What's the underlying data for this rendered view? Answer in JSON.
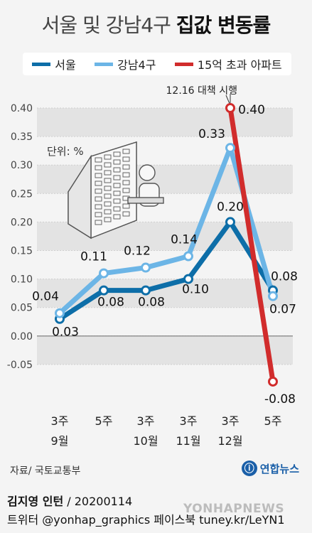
{
  "title": {
    "part1": "서울 및 강남4구 ",
    "part2": "집값 변동률"
  },
  "legend": [
    {
      "label": "서울",
      "color": "#0d6ea8"
    },
    {
      "label": "강남4구",
      "color": "#6cb5e6"
    },
    {
      "label": "15억 초과 아파트",
      "color": "#d12c2c"
    }
  ],
  "chart_data": {
    "type": "line",
    "unit_label": "단위: %",
    "annotation": "12.16 대책 시행",
    "ylim": [
      -0.1,
      0.42
    ],
    "yticks": [
      "0.40",
      "0.35",
      "0.30",
      "0.25",
      "0.20",
      "0.15",
      "0.10",
      "0.05",
      "0.00",
      "-0.05"
    ],
    "ytick_values": [
      0.4,
      0.35,
      0.3,
      0.25,
      0.2,
      0.15,
      0.1,
      0.05,
      0.0,
      -0.05
    ],
    "x_week_labels": [
      "3주",
      "5주",
      "3주",
      "3주",
      "3주",
      "5주"
    ],
    "x_month_labels": [
      "9월",
      "",
      "10월",
      "11월",
      "12월",
      ""
    ],
    "series": [
      {
        "name": "서울",
        "color": "#0d6ea8",
        "points": [
          [
            0,
            0.03
          ],
          [
            1,
            0.08
          ],
          [
            2,
            0.08
          ],
          [
            3,
            0.1
          ],
          [
            4,
            0.2
          ],
          [
            5,
            0.08
          ]
        ],
        "labels": [
          "0.03",
          "0.08",
          "0.08",
          "0.10",
          "0.20",
          "0.08"
        ]
      },
      {
        "name": "강남4구",
        "color": "#6cb5e6",
        "points": [
          [
            0,
            0.04
          ],
          [
            1,
            0.11
          ],
          [
            2,
            0.12
          ],
          [
            3,
            0.14
          ],
          [
            4,
            0.33
          ],
          [
            5,
            0.07
          ]
        ],
        "labels": [
          "0.04",
          "0.11",
          "0.12",
          "0.14",
          "0.33",
          "0.07"
        ]
      },
      {
        "name": "15억 초과 아파트",
        "color": "#d12c2c",
        "points": [
          [
            4,
            0.4
          ],
          [
            5,
            -0.08
          ]
        ],
        "labels": [
          "0.40",
          "-0.08"
        ]
      }
    ]
  },
  "footer": {
    "source": "자료/ 국토교통부",
    "logo_text": "연합뉴스",
    "author": "김지영 인턴",
    "date": " / 20200114",
    "sns": "트위터 @yonhap_graphics  페이스북 tuney.kr/LeYN1",
    "watermark": "YONHAPNEWS"
  }
}
